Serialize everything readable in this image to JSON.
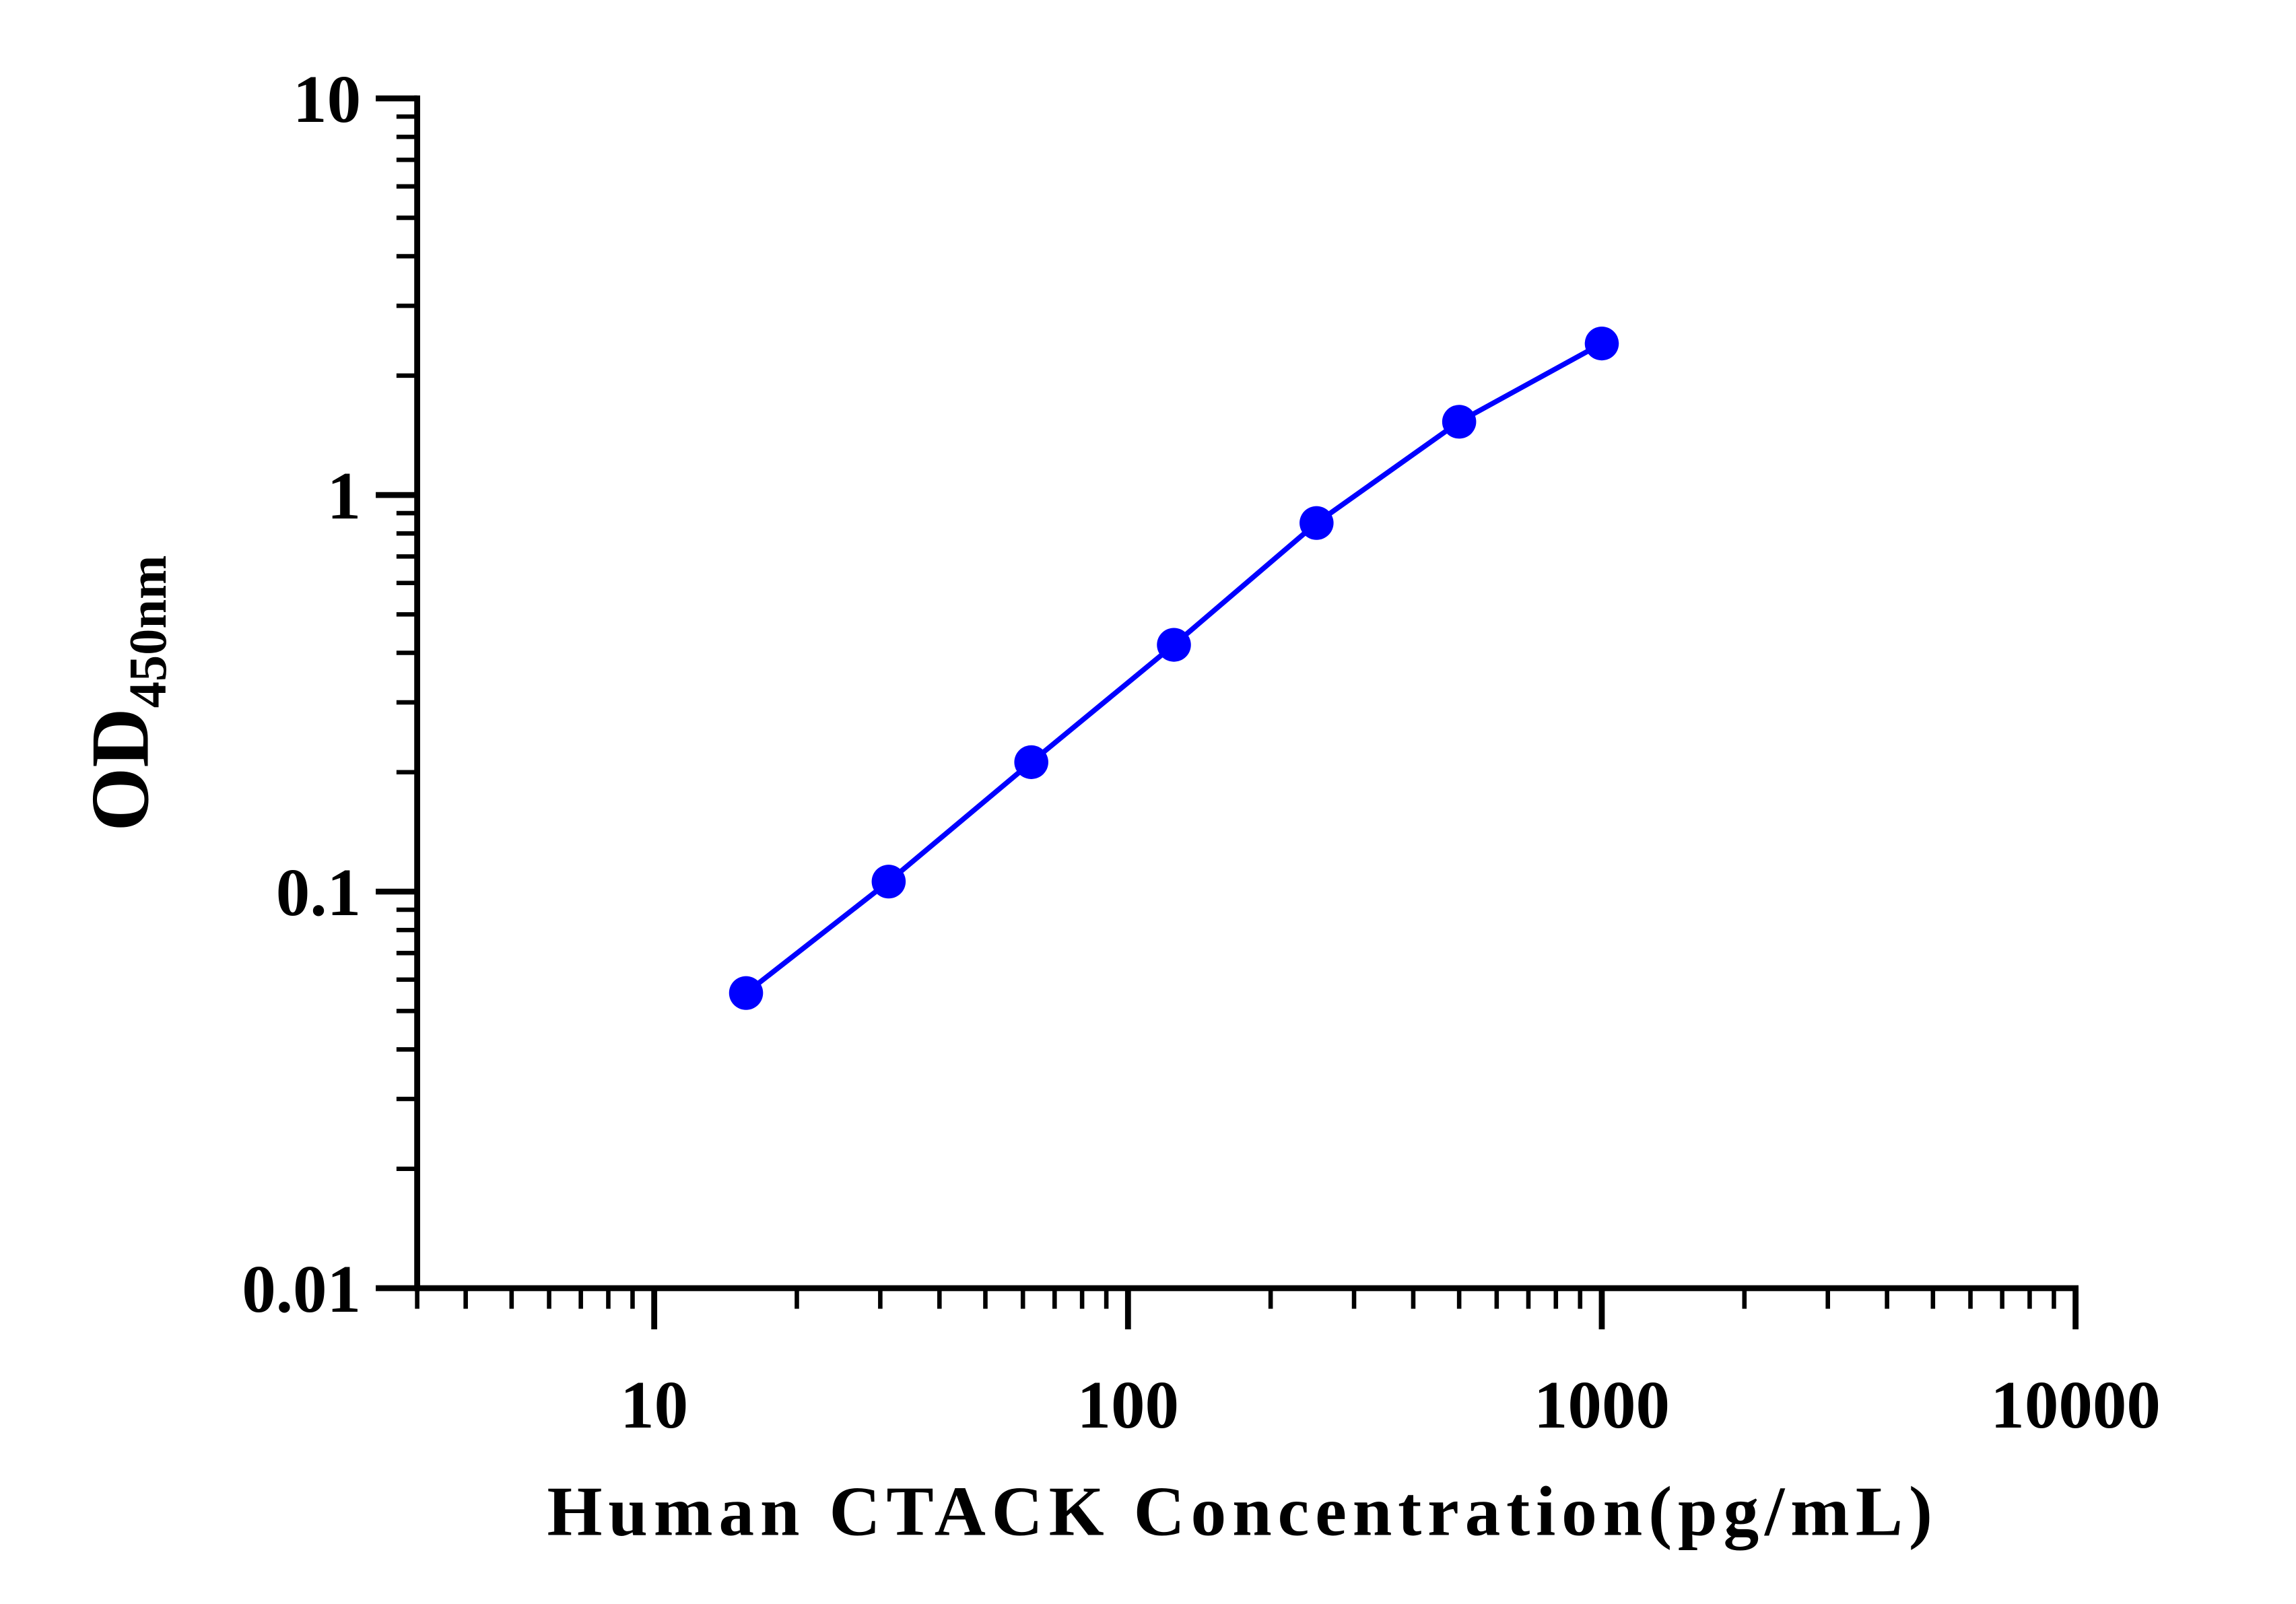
{
  "chart_data": {
    "type": "line",
    "xlabel": "Human CTACK Concentration(pg/mL)",
    "ylabel": "OD",
    "ylabel_subscript": "450nm",
    "x": [
      15.625,
      31.25,
      62.5,
      125,
      250,
      500,
      1000
    ],
    "series": [
      {
        "color": "#0000ff",
        "values": [
          0.0555,
          0.106,
          0.212,
          0.419,
          0.85,
          1.53,
          2.41
        ]
      }
    ],
    "xscale": "log",
    "yscale": "log",
    "xlim": [
      3.16,
      10000
    ],
    "xticks": [
      10,
      100,
      1000,
      10000
    ],
    "ylim": [
      0.01,
      10
    ],
    "yticks": [
      10,
      1,
      0.1,
      0.01
    ]
  }
}
